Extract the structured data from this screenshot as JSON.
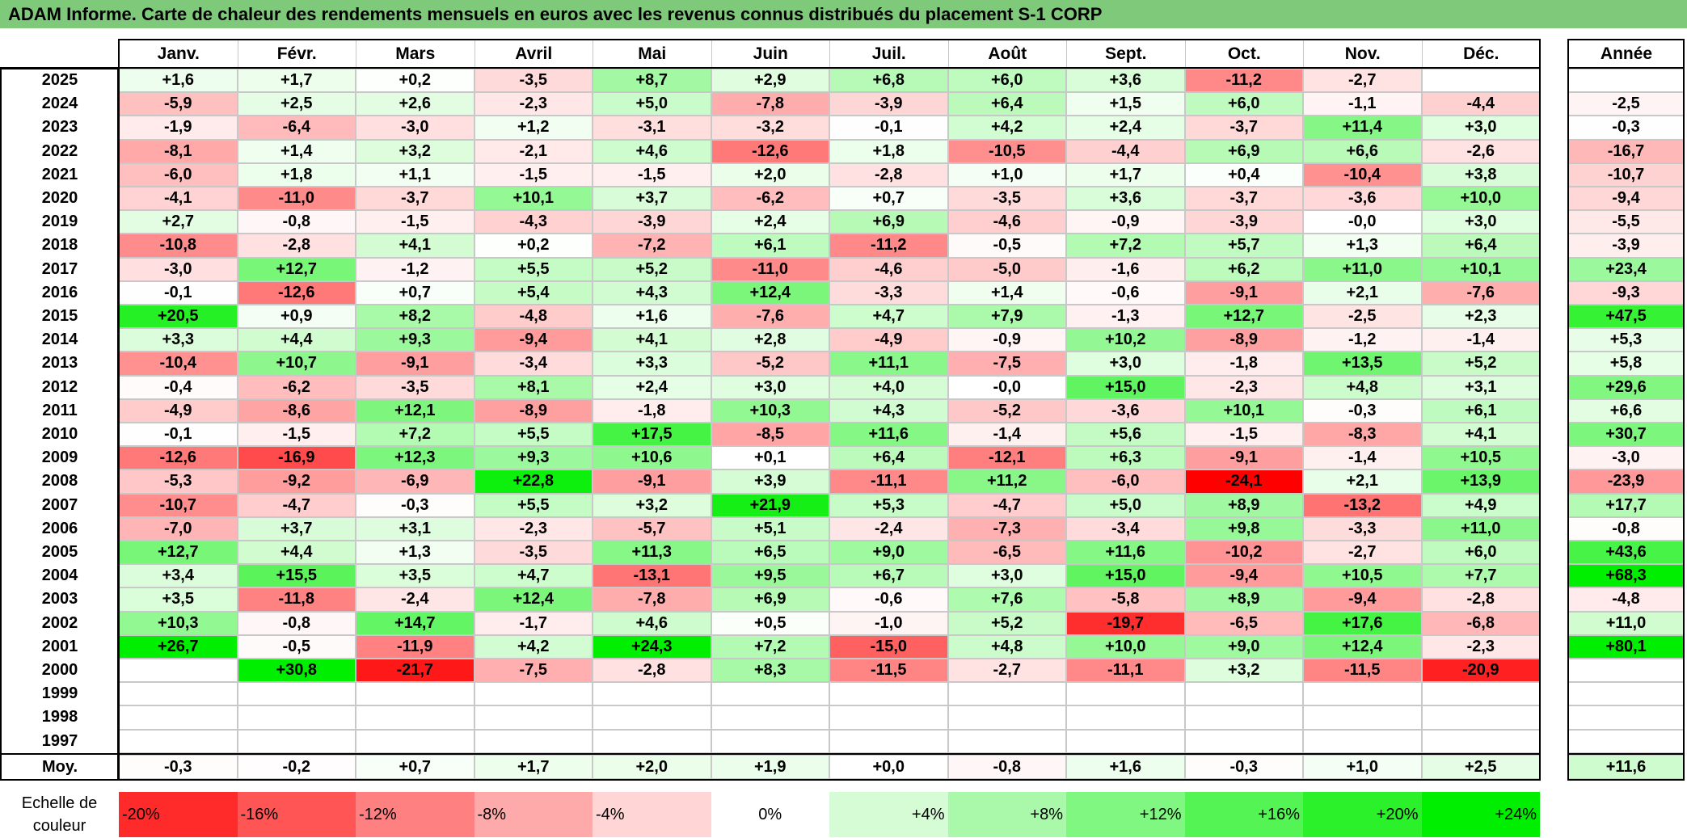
{
  "title": "ADAM Informe. Carte de chaleur des rendements mensuels en euros avec les revenus connus distribués du placement S-1 CORP",
  "chart_data": {
    "type": "heatmap",
    "title": "ADAM Informe. Carte de chaleur des rendements mensuels en euros avec les revenus connus distribués du placement S-1 CORP",
    "months": [
      "Janv.",
      "Févr.",
      "Mars",
      "Avril",
      "Mai",
      "Juin",
      "Juil.",
      "Août",
      "Sept.",
      "Oct.",
      "Nov.",
      "Déc."
    ],
    "annual_header": "Année",
    "rows": [
      {
        "year": "2025",
        "values": [
          "+1,6",
          "+1,7",
          "+0,2",
          "-3,5",
          "+8,7",
          "+2,9",
          "+6,8",
          "+6,0",
          "+3,6",
          "-11,2",
          "-2,7",
          ""
        ],
        "annual": ""
      },
      {
        "year": "2024",
        "values": [
          "-5,9",
          "+2,5",
          "+2,6",
          "-2,3",
          "+5,0",
          "-7,8",
          "-3,9",
          "+6,4",
          "+1,5",
          "+6,0",
          "-1,1",
          "-4,4"
        ],
        "annual": "-2,5"
      },
      {
        "year": "2023",
        "values": [
          "-1,9",
          "-6,4",
          "-3,0",
          "+1,2",
          "-3,1",
          "-3,2",
          "-0,1",
          "+4,2",
          "+2,4",
          "-3,7",
          "+11,4",
          "+3,0"
        ],
        "annual": "-0,3"
      },
      {
        "year": "2022",
        "values": [
          "-8,1",
          "+1,4",
          "+3,2",
          "-2,1",
          "+4,6",
          "-12,6",
          "+1,8",
          "-10,5",
          "-4,4",
          "+6,9",
          "+6,6",
          "-2,6"
        ],
        "annual": "-16,7"
      },
      {
        "year": "2021",
        "values": [
          "-6,0",
          "+1,8",
          "+1,1",
          "-1,5",
          "-1,5",
          "+2,0",
          "-2,8",
          "+1,0",
          "+1,7",
          "+0,4",
          "-10,4",
          "+3,8"
        ],
        "annual": "-10,7"
      },
      {
        "year": "2020",
        "values": [
          "-4,1",
          "-11,0",
          "-3,7",
          "+10,1",
          "+3,7",
          "-6,2",
          "+0,7",
          "-3,5",
          "+3,6",
          "-3,7",
          "-3,6",
          "+10,0"
        ],
        "annual": "-9,4"
      },
      {
        "year": "2019",
        "values": [
          "+2,7",
          "-0,8",
          "-1,5",
          "-4,3",
          "-3,9",
          "+2,4",
          "+6,9",
          "-4,6",
          "-0,9",
          "-3,9",
          "-0,0",
          "+3,0"
        ],
        "annual": "-5,5"
      },
      {
        "year": "2018",
        "values": [
          "-10,8",
          "-2,8",
          "+4,1",
          "+0,2",
          "-7,2",
          "+6,1",
          "-11,2",
          "-0,5",
          "+7,2",
          "+5,7",
          "+1,3",
          "+6,4"
        ],
        "annual": "-3,9"
      },
      {
        "year": "2017",
        "values": [
          "-3,0",
          "+12,7",
          "-1,2",
          "+5,5",
          "+5,2",
          "-11,0",
          "-4,6",
          "-5,0",
          "-1,6",
          "+6,2",
          "+11,0",
          "+10,1"
        ],
        "annual": "+23,4"
      },
      {
        "year": "2016",
        "values": [
          "-0,1",
          "-12,6",
          "+0,7",
          "+5,4",
          "+4,3",
          "+12,4",
          "-3,3",
          "+1,4",
          "-0,6",
          "-9,1",
          "+2,1",
          "-7,6"
        ],
        "annual": "-9,3"
      },
      {
        "year": "2015",
        "values": [
          "+20,5",
          "+0,9",
          "+8,2",
          "-4,8",
          "+1,6",
          "-7,6",
          "+4,7",
          "+7,9",
          "-1,3",
          "+12,7",
          "-2,5",
          "+2,3"
        ],
        "annual": "+47,5"
      },
      {
        "year": "2014",
        "values": [
          "+3,3",
          "+4,4",
          "+9,3",
          "-9,4",
          "+4,1",
          "+2,8",
          "-4,9",
          "-0,9",
          "+10,2",
          "-8,9",
          "-1,2",
          "-1,4"
        ],
        "annual": "+5,3"
      },
      {
        "year": "2013",
        "values": [
          "-10,4",
          "+10,7",
          "-9,1",
          "-3,4",
          "+3,3",
          "-5,2",
          "+11,1",
          "-7,5",
          "+3,0",
          "-1,8",
          "+13,5",
          "+5,2"
        ],
        "annual": "+5,8"
      },
      {
        "year": "2012",
        "values": [
          "-0,4",
          "-6,2",
          "-3,5",
          "+8,1",
          "+2,4",
          "+3,0",
          "+4,0",
          "-0,0",
          "+15,0",
          "-2,3",
          "+4,8",
          "+3,1"
        ],
        "annual": "+29,6"
      },
      {
        "year": "2011",
        "values": [
          "-4,9",
          "-8,6",
          "+12,1",
          "-8,9",
          "-1,8",
          "+10,3",
          "+4,3",
          "-5,2",
          "-3,6",
          "+10,1",
          "-0,3",
          "+6,1"
        ],
        "annual": "+6,6"
      },
      {
        "year": "2010",
        "values": [
          "-0,1",
          "-1,5",
          "+7,2",
          "+5,5",
          "+17,5",
          "-8,5",
          "+11,6",
          "-1,4",
          "+5,6",
          "-1,5",
          "-8,3",
          "+4,1"
        ],
        "annual": "+30,7"
      },
      {
        "year": "2009",
        "values": [
          "-12,6",
          "-16,9",
          "+12,3",
          "+9,3",
          "+10,6",
          "+0,1",
          "+6,4",
          "-12,1",
          "+6,3",
          "-9,1",
          "-1,4",
          "+10,5"
        ],
        "annual": "-3,0"
      },
      {
        "year": "2008",
        "values": [
          "-5,3",
          "-9,2",
          "-6,9",
          "+22,8",
          "-9,1",
          "+3,9",
          "-11,1",
          "+11,2",
          "-6,0",
          "-24,1",
          "+2,1",
          "+13,9"
        ],
        "annual": "-23,9"
      },
      {
        "year": "2007",
        "values": [
          "-10,7",
          "-4,7",
          "-0,3",
          "+5,5",
          "+3,2",
          "+21,9",
          "+5,3",
          "-4,7",
          "+5,0",
          "+8,9",
          "-13,2",
          "+4,9"
        ],
        "annual": "+17,7"
      },
      {
        "year": "2006",
        "values": [
          "-7,0",
          "+3,7",
          "+3,1",
          "-2,3",
          "-5,7",
          "+5,1",
          "-2,4",
          "-7,3",
          "-3,4",
          "+9,8",
          "-3,3",
          "+11,0"
        ],
        "annual": "-0,8"
      },
      {
        "year": "2005",
        "values": [
          "+12,7",
          "+4,4",
          "+1,3",
          "-3,5",
          "+11,3",
          "+6,5",
          "+9,0",
          "-6,5",
          "+11,6",
          "-10,2",
          "-2,7",
          "+6,0"
        ],
        "annual": "+43,6"
      },
      {
        "year": "2004",
        "values": [
          "+3,4",
          "+15,5",
          "+3,5",
          "+4,7",
          "-13,1",
          "+9,5",
          "+6,7",
          "+3,0",
          "+15,0",
          "-9,4",
          "+10,5",
          "+7,7"
        ],
        "annual": "+68,3"
      },
      {
        "year": "2003",
        "values": [
          "+3,5",
          "-11,8",
          "-2,4",
          "+12,4",
          "-7,8",
          "+6,9",
          "-0,6",
          "+7,6",
          "-5,8",
          "+8,9",
          "-9,4",
          "-2,8"
        ],
        "annual": "-4,8"
      },
      {
        "year": "2002",
        "values": [
          "+10,3",
          "-0,8",
          "+14,7",
          "-1,7",
          "+4,6",
          "+0,5",
          "-1,0",
          "+5,2",
          "-19,7",
          "-6,5",
          "+17,6",
          "-6,8"
        ],
        "annual": "+11,0"
      },
      {
        "year": "2001",
        "values": [
          "+26,7",
          "-0,5",
          "-11,9",
          "+4,2",
          "+24,3",
          "+7,2",
          "-15,0",
          "+4,8",
          "+10,0",
          "+9,0",
          "+12,4",
          "-2,3"
        ],
        "annual": "+80,1"
      },
      {
        "year": "2000",
        "values": [
          "",
          "+30,8",
          "-21,7",
          "-7,5",
          "-2,8",
          "+8,3",
          "-11,5",
          "-2,7",
          "-11,1",
          "+3,2",
          "-11,5",
          "-20,9"
        ],
        "annual": ""
      },
      {
        "year": "1999",
        "values": [
          "",
          "",
          "",
          "",
          "",
          "",
          "",
          "",
          "",
          "",
          "",
          ""
        ],
        "annual": ""
      },
      {
        "year": "1998",
        "values": [
          "",
          "",
          "",
          "",
          "",
          "",
          "",
          "",
          "",
          "",
          "",
          ""
        ],
        "annual": ""
      },
      {
        "year": "1997",
        "values": [
          "",
          "",
          "",
          "",
          "",
          "",
          "",
          "",
          "",
          "",
          "",
          ""
        ],
        "annual": ""
      }
    ],
    "average": {
      "label": "Moy.",
      "values": [
        "-0,3",
        "-0,2",
        "+0,7",
        "+1,7",
        "+2,0",
        "+1,9",
        "+0,0",
        "-0,8",
        "+1,6",
        "-0,3",
        "+1,0",
        "+2,5"
      ],
      "annual": "+11,6"
    },
    "color_scale": {
      "label": "Echelle de couleur",
      "stops": [
        {
          "label": "-20%",
          "value": -20
        },
        {
          "label": "-16%",
          "value": -16
        },
        {
          "label": "-12%",
          "value": -12
        },
        {
          "label": "-8%",
          "value": -8
        },
        {
          "label": "-4%",
          "value": -4
        },
        {
          "label": "0%",
          "value": 0
        },
        {
          "label": "+4%",
          "value": 4
        },
        {
          "label": "+8%",
          "value": 8
        },
        {
          "label": "+12%",
          "value": 12
        },
        {
          "label": "+16%",
          "value": 16
        },
        {
          "label": "+20%",
          "value": 20
        },
        {
          "label": "+24%",
          "value": 24
        }
      ],
      "negative_color": "#ff0000",
      "neutral_color": "#ffffff",
      "positive_color": "#00ee00"
    }
  }
}
